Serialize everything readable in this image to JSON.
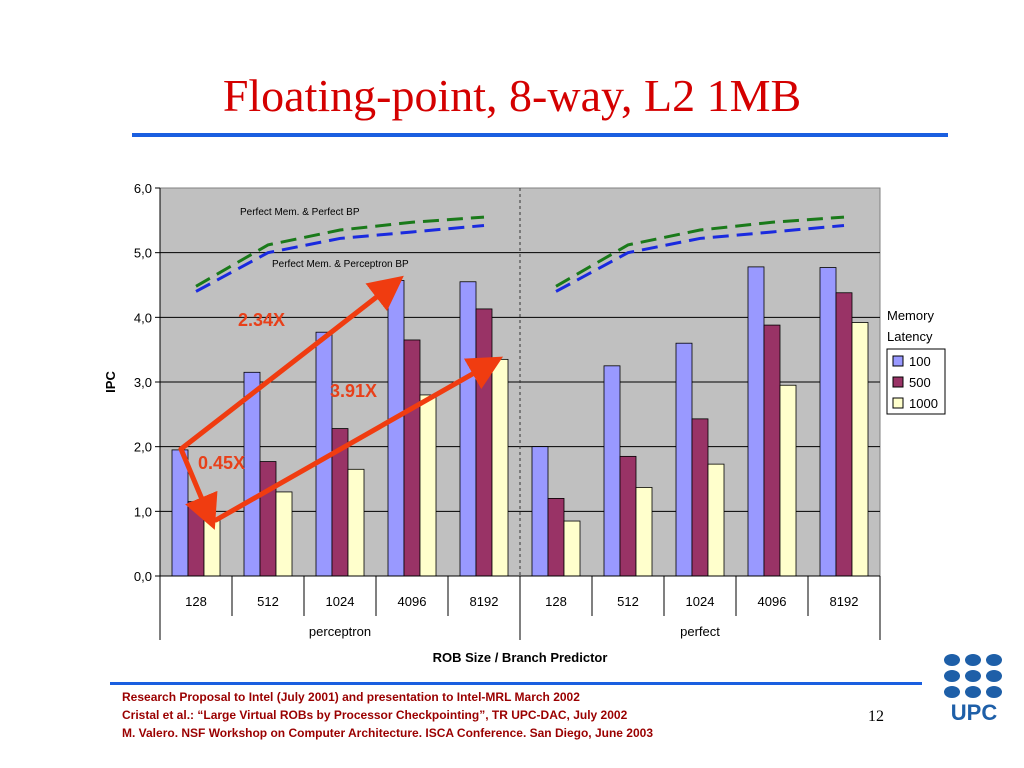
{
  "slide": {
    "title": "Floating-point, 8-way, L2 1MB",
    "footer_lines": [
      "Research Proposal  to Intel (July 2001) and  presentation to Intel-MRL March 2002",
      "Cristal et al.: “Large Virtual ROBs by Processor Checkpointing”, TR UPC-DAC, July 2002",
      "M. Valero. NSF Workshop on Computer Architecture. ISCA Conference. San Diego, June 2003"
    ],
    "page_number": "12",
    "logo_text": "UPC"
  },
  "chart_data": {
    "type": "bar",
    "ylabel": "IPC",
    "xlabel": "ROB Size / Branch Predictor",
    "ylim": [
      0,
      6
    ],
    "yticks": [
      "0,0",
      "1,0",
      "2,0",
      "3,0",
      "4,0",
      "5,0",
      "6,0"
    ],
    "grid": true,
    "groups": [
      {
        "name": "perceptron",
        "categories": [
          "128",
          "512",
          "1024",
          "4096",
          "8192"
        ]
      },
      {
        "name": "perfect",
        "categories": [
          "128",
          "512",
          "1024",
          "4096",
          "8192"
        ]
      }
    ],
    "legend": {
      "title_lines": [
        "Memory",
        "Latency"
      ],
      "placement": "right"
    },
    "series": [
      {
        "name": "100",
        "color": "#9999ff",
        "values": [
          1.95,
          3.15,
          3.77,
          4.57,
          4.55,
          2.0,
          3.25,
          3.6,
          4.78,
          4.77
        ]
      },
      {
        "name": "500",
        "color": "#993366",
        "values": [
          1.15,
          1.77,
          2.28,
          3.65,
          4.13,
          1.2,
          1.85,
          2.43,
          3.88,
          4.38
        ]
      },
      {
        "name": "1000",
        "color": "#ffffcc",
        "values": [
          0.88,
          1.3,
          1.65,
          2.8,
          3.35,
          0.85,
          1.37,
          1.73,
          2.95,
          3.92
        ]
      }
    ],
    "lines": [
      {
        "label": "Perfect Mem. & Perfect BP",
        "color": "#1a7a1a",
        "groups": [
          [
            4.48,
            5.12,
            5.35,
            5.47,
            5.55
          ],
          [
            4.48,
            5.12,
            5.35,
            5.47,
            5.55
          ]
        ]
      },
      {
        "label": "Perfect Mem. & Perceptron BP",
        "color": "#1a2adf",
        "groups": [
          [
            4.4,
            5.0,
            5.22,
            5.32,
            5.42
          ],
          [
            4.4,
            5.0,
            5.22,
            5.32,
            5.42
          ]
        ]
      }
    ],
    "annotations": [
      {
        "text": "2.34X",
        "color": "#e8401a"
      },
      {
        "text": "3.91X",
        "color": "#e8401a"
      },
      {
        "text": "0.45X",
        "color": "#e8401a"
      }
    ]
  }
}
